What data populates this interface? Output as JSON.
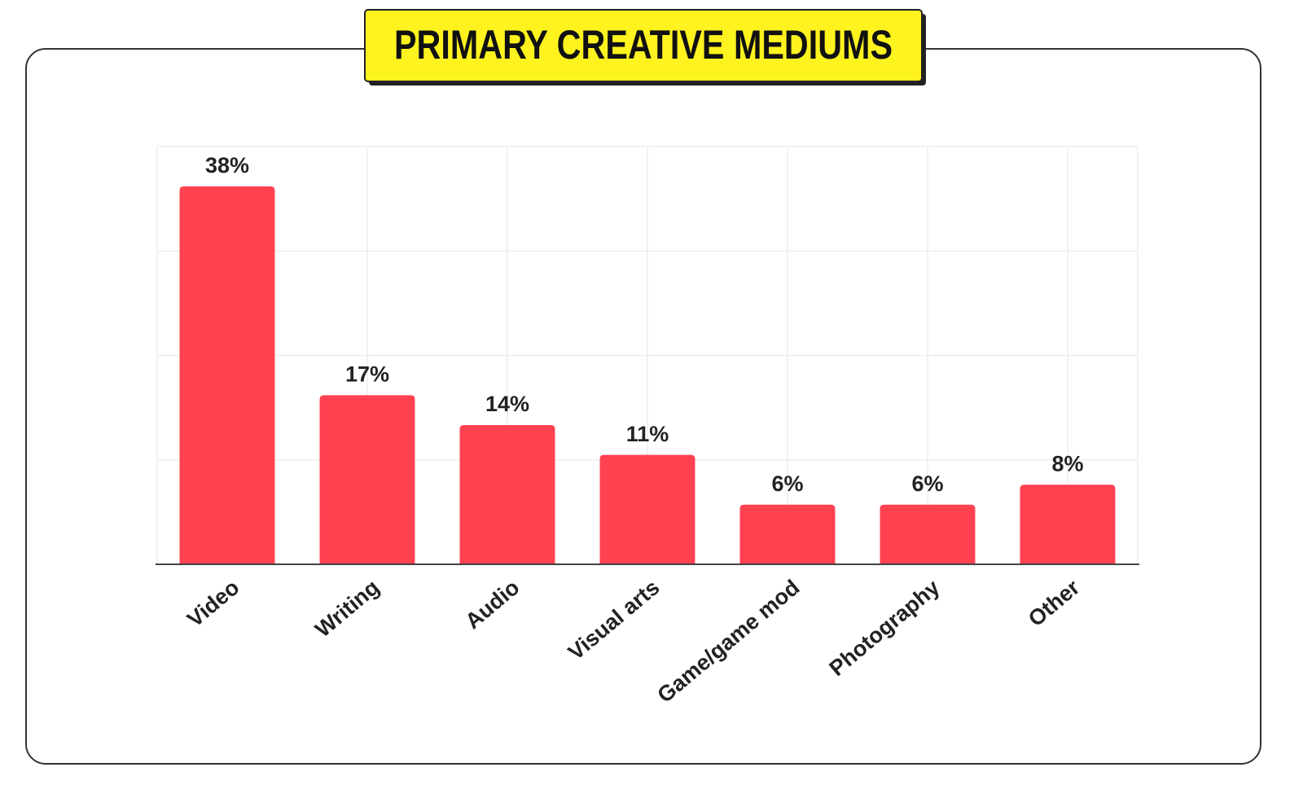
{
  "chart_data": {
    "type": "bar",
    "title": "PRIMARY CREATIVE MEDIUMS",
    "categories": [
      "Video",
      "Writing",
      "Audio",
      "Visual arts",
      "Game/game mod",
      "Photography",
      "Other"
    ],
    "values": [
      38,
      17,
      14,
      11,
      6,
      6,
      8
    ],
    "value_labels": [
      "38%",
      "17%",
      "14%",
      "11%",
      "6%",
      "6%",
      "8%"
    ],
    "color": "#ff4150",
    "ylim": [
      0,
      42
    ],
    "grid": true
  }
}
